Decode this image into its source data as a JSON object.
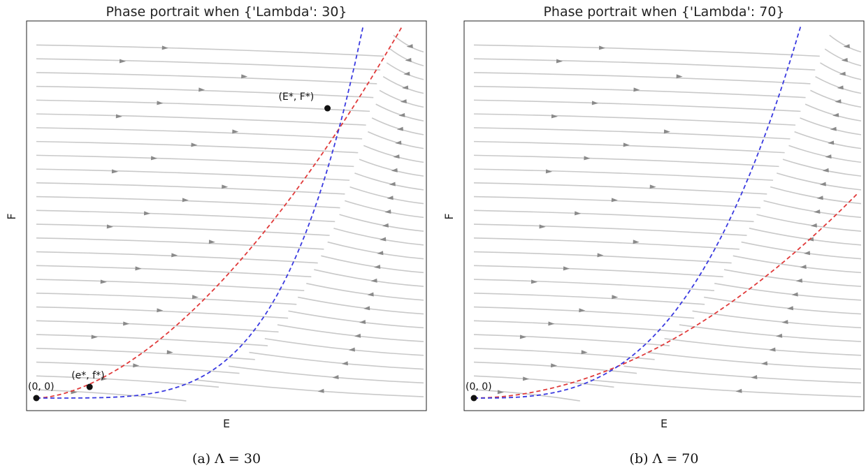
{
  "chart_data": [
    {
      "type": "streamplot",
      "title": "Phase portrait when {'Lambda': 30}",
      "xlabel": "E",
      "ylabel": "F",
      "caption": "(a) Λ = 30",
      "ticks": "none",
      "grid": false,
      "series": [
        {
          "name": "",
          "color": "#e03a3a",
          "style": "dashed",
          "exponent": 1.7,
          "end_y": 1.0
        },
        {
          "name": "",
          "color": "#3a3ae0",
          "style": "dashed",
          "exponent": 4.2,
          "end_y": 1.0
        }
      ],
      "points": [
        {
          "label": "(0, 0)",
          "x": 0.0,
          "y": 0.0
        },
        {
          "label": "(e*, f*)",
          "x": 0.15,
          "y": 0.03
        },
        {
          "label": "(E*, F*)",
          "x": 0.82,
          "y": 0.78
        }
      ]
    },
    {
      "type": "streamplot",
      "title": "Phase portrait when {'Lambda': 70}",
      "xlabel": "E",
      "ylabel": "F",
      "caption": "(b) Λ = 70",
      "ticks": "none",
      "grid": false,
      "series": [
        {
          "name": "",
          "color": "#e03a3a",
          "style": "dashed",
          "exponent": 1.9,
          "end_y": 0.55
        },
        {
          "name": "",
          "color": "#3a3ae0",
          "style": "dashed",
          "exponent": 3.0,
          "end_y": 1.0
        }
      ],
      "points": [
        {
          "label": "(0, 0)",
          "x": 0.0,
          "y": 0.0
        }
      ]
    }
  ]
}
